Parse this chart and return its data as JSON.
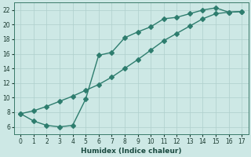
{
  "xlabel": "Humidex (Indice chaleur)",
  "bg_color": "#cde8e5",
  "grid_color": "#aecfcc",
  "line_color": "#2e7d6e",
  "xlim": [
    -0.5,
    17.5
  ],
  "ylim": [
    5.0,
    23.0
  ],
  "xticks": [
    0,
    1,
    2,
    3,
    4,
    5,
    6,
    7,
    8,
    9,
    10,
    11,
    12,
    13,
    14,
    15,
    16,
    17
  ],
  "yticks": [
    6,
    8,
    10,
    12,
    14,
    16,
    18,
    20,
    22
  ],
  "upper_x": [
    0,
    1,
    2,
    3,
    4,
    5,
    6,
    7,
    8,
    9,
    10,
    11,
    12,
    13,
    14,
    15,
    16,
    17
  ],
  "upper_y": [
    7.8,
    6.8,
    6.2,
    6.0,
    6.2,
    9.8,
    15.8,
    16.2,
    18.2,
    19.0,
    19.7,
    20.8,
    21.0,
    21.5,
    22.0,
    22.3,
    21.7,
    21.8
  ],
  "lower_x": [
    0,
    1,
    2,
    3,
    4,
    5,
    6,
    7,
    8,
    9,
    10,
    11,
    12,
    13,
    14,
    15,
    16,
    17
  ],
  "lower_y": [
    7.8,
    8.2,
    8.8,
    9.5,
    10.2,
    11.0,
    11.8,
    12.8,
    14.0,
    15.2,
    16.5,
    17.8,
    18.8,
    19.8,
    20.8,
    21.5,
    21.7,
    21.8
  ],
  "markersize": 3.0,
  "linewidth": 1.0
}
